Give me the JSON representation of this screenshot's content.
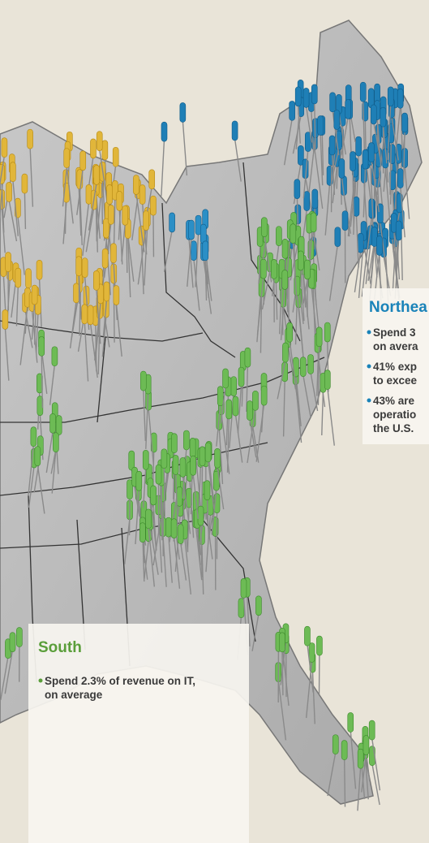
{
  "northeast": {
    "title": "Northea",
    "bullets": [
      [
        "Spend 3",
        "on avera"
      ],
      [
        "41% exp",
        "to excee"
      ],
      [
        "43% are",
        "operatio",
        "the U.S."
      ]
    ]
  },
  "south": {
    "title": "South",
    "bullets": [
      [
        "Spend 2.3% of revenue on IT,",
        "on average"
      ]
    ]
  }
}
